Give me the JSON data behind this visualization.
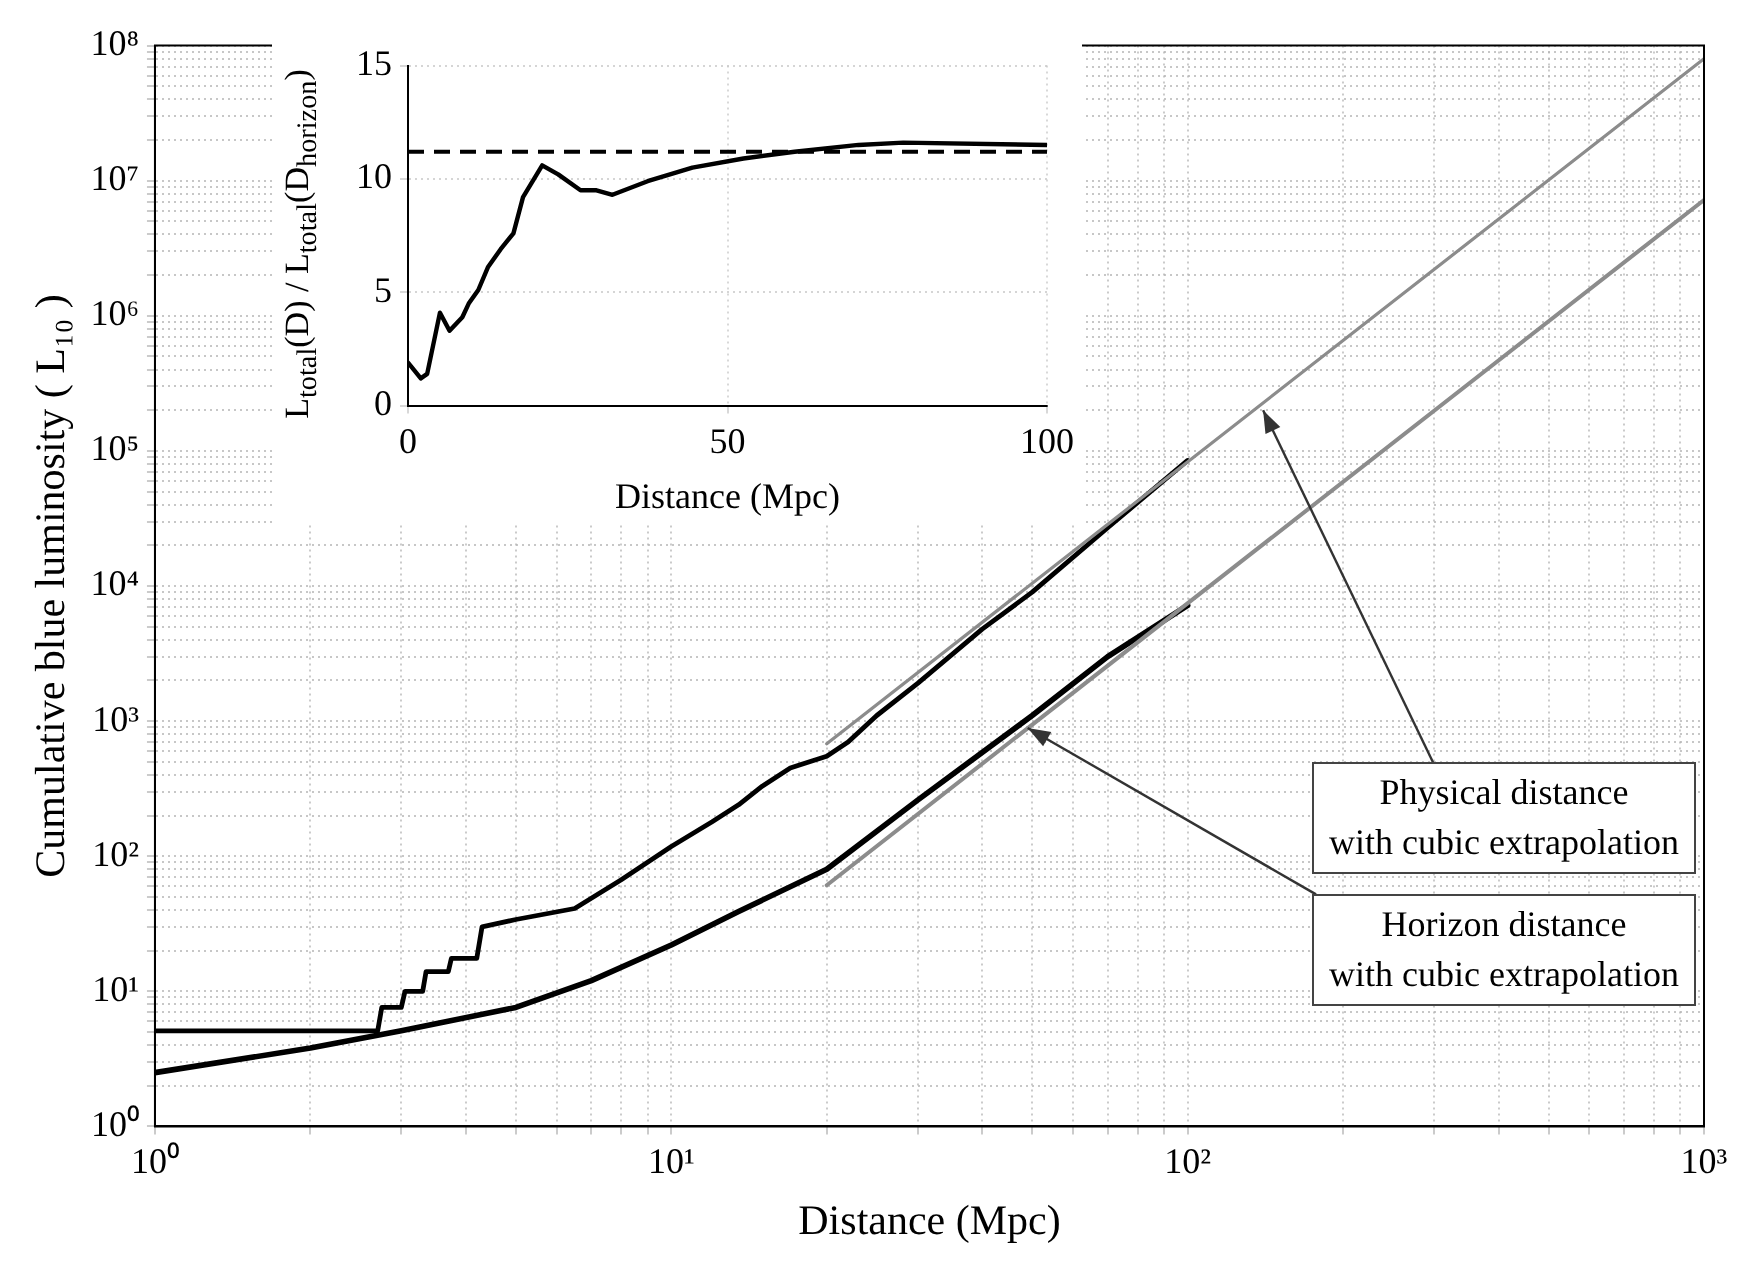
{
  "chart_data": [
    {
      "type": "line",
      "xlabel": "Distance (Mpc)",
      "ylabel": "Cumulative blue luminosity ( L₁₀ )",
      "log": "xy",
      "grid": true,
      "legend": false,
      "marker": "none",
      "xlim": [
        1,
        1000
      ],
      "ylim": [
        1,
        100000000
      ],
      "xticks": [
        {
          "value": 1,
          "label": "10⁰"
        },
        {
          "value": 2,
          "label": null
        },
        {
          "value": 3,
          "label": null
        },
        {
          "value": 4,
          "label": null
        },
        {
          "value": 5,
          "label": null
        },
        {
          "value": 6,
          "label": null
        },
        {
          "value": 7,
          "label": null
        },
        {
          "value": 8,
          "label": null
        },
        {
          "value": 9,
          "label": null
        },
        {
          "value": 10,
          "label": "10¹"
        },
        {
          "value": 20,
          "label": null
        },
        {
          "value": 30,
          "label": null
        },
        {
          "value": 40,
          "label": null
        },
        {
          "value": 50,
          "label": null
        },
        {
          "value": 60,
          "label": null
        },
        {
          "value": 70,
          "label": null
        },
        {
          "value": 80,
          "label": null
        },
        {
          "value": 90,
          "label": null
        },
        {
          "value": 100,
          "label": "10²"
        },
        {
          "value": 200,
          "label": null
        },
        {
          "value": 300,
          "label": null
        },
        {
          "value": 400,
          "label": null
        },
        {
          "value": 500,
          "label": null
        },
        {
          "value": 600,
          "label": null
        },
        {
          "value": 700,
          "label": null
        },
        {
          "value": 800,
          "label": null
        },
        {
          "value": 900,
          "label": null
        },
        {
          "value": 1000,
          "label": "10³"
        }
      ],
      "yticks": [
        {
          "value": 1,
          "label": "10⁰"
        },
        {
          "value": 2,
          "label": null
        },
        {
          "value": 3,
          "label": null
        },
        {
          "value": 4,
          "label": null
        },
        {
          "value": 5,
          "label": null
        },
        {
          "value": 6,
          "label": null
        },
        {
          "value": 7,
          "label": null
        },
        {
          "value": 8,
          "label": null
        },
        {
          "value": 9,
          "label": null
        },
        {
          "value": 10,
          "label": "10¹"
        },
        {
          "value": 20,
          "label": null
        },
        {
          "value": 30,
          "label": null
        },
        {
          "value": 40,
          "label": null
        },
        {
          "value": 50,
          "label": null
        },
        {
          "value": 60,
          "label": null
        },
        {
          "value": 70,
          "label": null
        },
        {
          "value": 80,
          "label": null
        },
        {
          "value": 90,
          "label": null
        },
        {
          "value": 100,
          "label": "10²"
        },
        {
          "value": 200,
          "label": null
        },
        {
          "value": 300,
          "label": null
        },
        {
          "value": 400,
          "label": null
        },
        {
          "value": 500,
          "label": null
        },
        {
          "value": 600,
          "label": null
        },
        {
          "value": 700,
          "label": null
        },
        {
          "value": 800,
          "label": null
        },
        {
          "value": 900,
          "label": null
        },
        {
          "value": 1000,
          "label": "10³"
        },
        {
          "value": 2000,
          "label": null
        },
        {
          "value": 3000,
          "label": null
        },
        {
          "value": 4000,
          "label": null
        },
        {
          "value": 5000,
          "label": null
        },
        {
          "value": 6000,
          "label": null
        },
        {
          "value": 7000,
          "label": null
        },
        {
          "value": 8000,
          "label": null
        },
        {
          "value": 9000,
          "label": null
        },
        {
          "value": 10000,
          "label": "10⁴"
        },
        {
          "value": 20000,
          "label": null
        },
        {
          "value": 30000,
          "label": null
        },
        {
          "value": 40000,
          "label": null
        },
        {
          "value": 50000,
          "label": null
        },
        {
          "value": 60000,
          "label": null
        },
        {
          "value": 70000,
          "label": null
        },
        {
          "value": 80000,
          "label": null
        },
        {
          "value": 90000,
          "label": null
        },
        {
          "value": 100000,
          "label": "10⁵"
        },
        {
          "value": 200000,
          "label": null
        },
        {
          "value": 300000,
          "label": null
        },
        {
          "value": 400000,
          "label": null
        },
        {
          "value": 500000,
          "label": null
        },
        {
          "value": 600000,
          "label": null
        },
        {
          "value": 700000,
          "label": null
        },
        {
          "value": 800000,
          "label": null
        },
        {
          "value": 900000,
          "label": null
        },
        {
          "value": 1000000,
          "label": "10⁶"
        },
        {
          "value": 2000000,
          "label": null
        },
        {
          "value": 3000000,
          "label": null
        },
        {
          "value": 4000000,
          "label": null
        },
        {
          "value": 5000000,
          "label": null
        },
        {
          "value": 6000000,
          "label": null
        },
        {
          "value": 7000000,
          "label": null
        },
        {
          "value": 8000000,
          "label": null
        },
        {
          "value": 9000000,
          "label": null
        },
        {
          "value": 10000000,
          "label": "10⁷"
        },
        {
          "value": 20000000,
          "label": null
        },
        {
          "value": 30000000,
          "label": null
        },
        {
          "value": 40000000,
          "label": null
        },
        {
          "value": 50000000,
          "label": null
        },
        {
          "value": 60000000,
          "label": null
        },
        {
          "value": 70000000,
          "label": null
        },
        {
          "value": 80000000,
          "label": null
        },
        {
          "value": 90000000,
          "label": null
        },
        {
          "value": 100000000,
          "label": "10⁸"
        }
      ],
      "series": [
        {
          "color": "#8c8c8c",
          "x": [
            20,
            1000
          ],
          "values": [
            680,
            80000000
          ]
        },
        {
          "color": "#8c8c8c",
          "x": [
            20,
            1000
          ],
          "values": [
            61,
            7200000
          ]
        },
        {
          "color": "#000000",
          "x": [
            1,
            2.7,
            2.75,
            3.0,
            3.05,
            3.3,
            3.35,
            3.7,
            3.75,
            4.2,
            4.3,
            5,
            6.5,
            8,
            10,
            12,
            13.5,
            15,
            17,
            20,
            22,
            25,
            30,
            40,
            50,
            70,
            100
          ],
          "values": [
            5.1,
            5.1,
            7.6,
            7.6,
            10,
            10,
            14,
            14,
            17.5,
            17.5,
            30,
            34,
            41,
            67,
            118,
            180,
            240,
            330,
            450,
            550,
            700,
            1100,
            1900,
            4800,
            9000,
            27000,
            85000
          ]
        },
        {
          "color": "#000000",
          "x": [
            1,
            2,
            3,
            5,
            7,
            10,
            13.5,
            20,
            30,
            50,
            70,
            100
          ],
          "values": [
            2.5,
            3.8,
            5.1,
            7.6,
            12,
            22,
            39,
            80,
            260,
            1100,
            3000,
            7200
          ]
        }
      ],
      "annotations": [
        {
          "text": "Physical distance\nwith cubic extrapolation",
          "x": 140,
          "y": 200000
        },
        {
          "text": "Horizon distance\nwith cubic extrapolation",
          "x": 49,
          "y": 890
        }
      ]
    },
    {
      "type": "line",
      "xlabel": "Distance (Mpc)",
      "ylabel": "L$_{total}$(D) / L$_{total}$(D$_{horizon}$)",
      "grid": true,
      "legend": false,
      "marker": "none",
      "xlim": [
        0,
        100
      ],
      "ylim": [
        0,
        15
      ],
      "xticks": [
        0,
        50,
        100
      ],
      "yticks": [
        0,
        5,
        10,
        15
      ],
      "series": [
        {
          "color": "#000000",
          "x": [
            0,
            2,
            3,
            5,
            6.5,
            8.5,
            9.5,
            11,
            12.5,
            14.5,
            16.5,
            18,
            21,
            23.5,
            27,
            29.5,
            32,
            37.5,
            44.5,
            52.5,
            60.5,
            70.5,
            77.5,
            100
          ],
          "values": [
            1.9,
            1.2,
            1.4,
            4.1,
            3.3,
            3.9,
            4.5,
            5.1,
            6.1,
            6.9,
            7.6,
            9.2,
            10.6,
            10.2,
            9.5,
            9.5,
            9.3,
            9.9,
            10.5,
            10.9,
            11.2,
            11.5,
            11.6,
            11.5
          ]
        }
      ],
      "ref_lines": [
        {
          "axis": "y",
          "value": 11.2,
          "line_style": "dashed",
          "color": "#000000"
        }
      ]
    }
  ]
}
